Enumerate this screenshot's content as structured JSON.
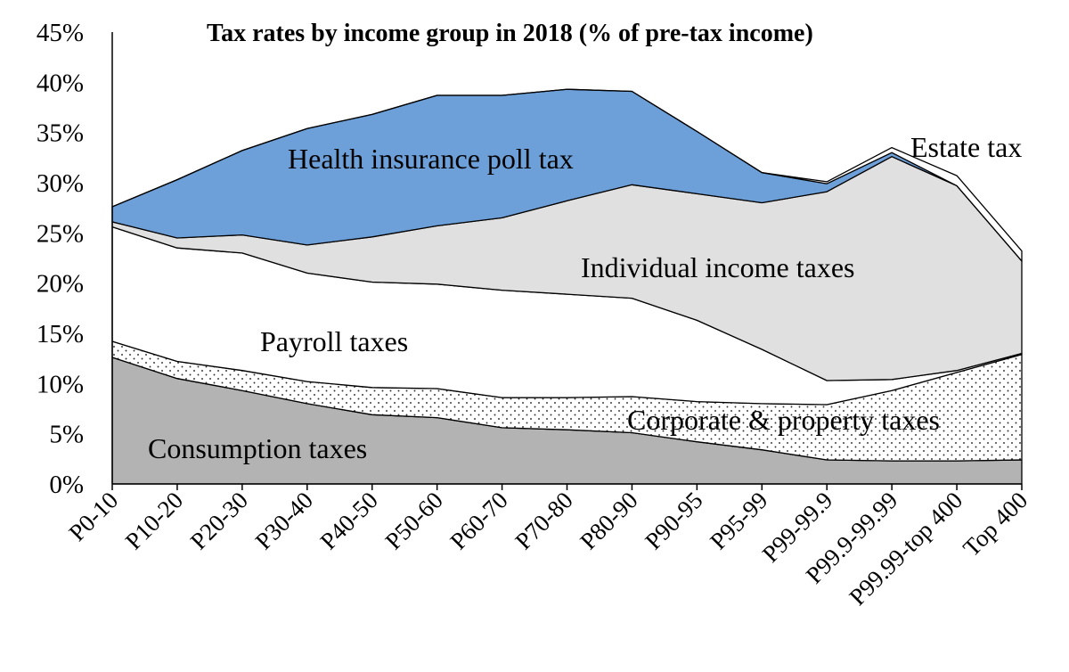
{
  "chart_data": {
    "type": "area",
    "stacked": true,
    "title": "Tax rates by income group in 2018 (% of pre-tax income)",
    "xlabel": "",
    "ylabel": "",
    "ylim": [
      0,
      45
    ],
    "y_ticks": [
      "0%",
      "5%",
      "10%",
      "15%",
      "20%",
      "25%",
      "30%",
      "35%",
      "40%",
      "45%"
    ],
    "y_tick_values": [
      0,
      5,
      10,
      15,
      20,
      25,
      30,
      35,
      40,
      45
    ],
    "categories": [
      "P0-10",
      "P10-20",
      "P20-30",
      "P30-40",
      "P40-50",
      "P50-60",
      "P60-70",
      "P70-80",
      "P80-90",
      "P90-95",
      "P95-99",
      "P99-99.9",
      "P99.9-99.99",
      "P99.99-top 400",
      "Top 400"
    ],
    "series": [
      {
        "name": "Consumption taxes",
        "values": [
          12.6,
          10.5,
          9.3,
          8.0,
          6.9,
          6.6,
          5.6,
          5.4,
          5.1,
          4.2,
          3.4,
          2.4,
          2.3,
          2.3,
          2.4
        ]
      },
      {
        "name": "Corporate & property taxes",
        "values": [
          1.6,
          1.7,
          2.0,
          2.2,
          2.7,
          2.9,
          3.0,
          3.2,
          3.6,
          4.0,
          4.6,
          5.5,
          7.0,
          8.8,
          10.5
        ]
      },
      {
        "name": "Payroll taxes",
        "values": [
          11.4,
          11.3,
          11.7,
          10.8,
          10.5,
          10.4,
          10.7,
          10.3,
          9.8,
          8.1,
          5.4,
          2.4,
          1.1,
          0.2,
          0.1
        ]
      },
      {
        "name": "Individual income taxes",
        "values": [
          0.5,
          1.0,
          1.8,
          2.8,
          4.5,
          5.8,
          7.2,
          9.3,
          11.3,
          12.6,
          14.6,
          18.8,
          22.2,
          18.4,
          9.2
        ]
      },
      {
        "name": "Health insurance poll tax",
        "values": [
          1.5,
          5.8,
          8.4,
          11.6,
          12.2,
          13.0,
          12.2,
          11.1,
          9.3,
          6.2,
          3.0,
          0.8,
          0.4,
          0.0,
          0.0
        ]
      },
      {
        "name": "Estate tax",
        "values": [
          0.0,
          0.0,
          0.0,
          0.0,
          0.0,
          0.0,
          0.0,
          0.0,
          0.0,
          0.0,
          0.0,
          0.2,
          0.5,
          1.0,
          1.0
        ]
      }
    ],
    "colors": {
      "Consumption taxes": "#b3b3b3",
      "Corporate & property taxes": "#ffffff",
      "Payroll taxes": "#ffffff",
      "Individual income taxes": "#e0e0e0",
      "Health insurance poll tax": "#6d9fd8",
      "Estate tax": "#ffffff"
    },
    "area_labels": [
      {
        "text": "Health insurance poll tax",
        "color": "#ffffff"
      },
      {
        "text": "Estate tax",
        "color": "#000000"
      },
      {
        "text": "Individual income taxes",
        "color": "#000000"
      },
      {
        "text": "Payroll taxes",
        "color": "#000000"
      },
      {
        "text": "Corporate & property taxes",
        "color": "#000000"
      },
      {
        "text": "Consumption taxes",
        "color": "#ffffff"
      }
    ]
  }
}
